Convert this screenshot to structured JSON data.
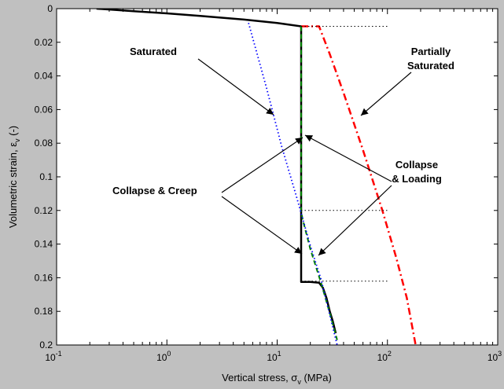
{
  "chart_data": {
    "type": "line",
    "xscale": "log",
    "xlim": [
      0.1,
      1000
    ],
    "ylim": [
      0,
      0.2
    ],
    "y_reversed": true,
    "xlabel": {
      "main": "Vertical stress, σ",
      "sub": "v",
      "unit": " (MPa)"
    },
    "ylabel": {
      "main": "Volumetric strain, ε",
      "sub": "v",
      "unit": " (-)"
    },
    "xticks": [
      {
        "value": 0.1,
        "base": "10",
        "exp": "-1"
      },
      {
        "value": 1,
        "base": "10",
        "exp": "0"
      },
      {
        "value": 10,
        "base": "10",
        "exp": "1"
      },
      {
        "value": 100,
        "base": "10",
        "exp": "2"
      },
      {
        "value": 1000,
        "base": "10",
        "exp": "3"
      }
    ],
    "yticks": [
      {
        "value": 0,
        "label": "0"
      },
      {
        "value": 0.02,
        "label": "0.02"
      },
      {
        "value": 0.04,
        "label": "0.04"
      },
      {
        "value": 0.06,
        "label": "0.06"
      },
      {
        "value": 0.08,
        "label": "0.08"
      },
      {
        "value": 0.1,
        "label": "0.1"
      },
      {
        "value": 0.12,
        "label": "0.12"
      },
      {
        "value": 0.14,
        "label": "0.14"
      },
      {
        "value": 0.16,
        "label": "0.16"
      },
      {
        "value": 0.18,
        "label": "0.18"
      },
      {
        "value": 0.2,
        "label": "0.2"
      }
    ],
    "series": [
      {
        "style": "solid",
        "color": "#000000",
        "width": 2.5,
        "x": [
          0.23,
          0.5,
          1,
          2,
          5,
          10,
          16.5,
          16.5,
          20,
          24,
          26,
          28,
          30,
          32,
          34
        ],
        "y": [
          0,
          0.0015,
          0.0028,
          0.0043,
          0.0065,
          0.0085,
          0.0105,
          0.1625,
          0.1625,
          0.163,
          0.166,
          0.172,
          0.18,
          0.186,
          0.193
        ]
      },
      {
        "style": "dashdot",
        "color": "#ff0000",
        "width": 2.5,
        "x": [
          16.5,
          24,
          30,
          40,
          60,
          90,
          120,
          150,
          180
        ],
        "y": [
          0.0105,
          0.0105,
          0.027,
          0.05,
          0.084,
          0.12,
          0.148,
          0.172,
          0.2
        ]
      },
      {
        "style": "dashed",
        "color": "#008000",
        "width": 2,
        "x": [
          16.5,
          16.5,
          17,
          20,
          25,
          30,
          35
        ],
        "y": [
          0.0105,
          0.1205,
          0.125,
          0.143,
          0.163,
          0.181,
          0.197
        ]
      },
      {
        "style": "dotted",
        "color": "#0000ff",
        "width": 1.8,
        "x": [
          5.5,
          8,
          11,
          15,
          20,
          25,
          30,
          35
        ],
        "y": [
          0.0085,
          0.047,
          0.082,
          0.112,
          0.141,
          0.161,
          0.182,
          0.2
        ]
      },
      {
        "style": "dotted",
        "color": "#000000",
        "width": 1,
        "x": [
          16.5,
          100
        ],
        "y": [
          0.0105,
          0.0105
        ]
      },
      {
        "style": "dotted",
        "color": "#000000",
        "width": 1,
        "x": [
          16.5,
          100
        ],
        "y": [
          0.12,
          0.12
        ]
      },
      {
        "style": "dotted",
        "color": "#000000",
        "width": 1,
        "x": [
          16.5,
          100
        ],
        "y": [
          0.162,
          0.162
        ]
      }
    ],
    "annotations": {
      "saturated": "Saturated",
      "partially_line1": "Partially",
      "partially_line2": "Saturated",
      "collapse_creep": "Collapse & Creep",
      "collapse_loading_line1": "Collapse",
      "collapse_loading_line2": "& Loading"
    }
  }
}
